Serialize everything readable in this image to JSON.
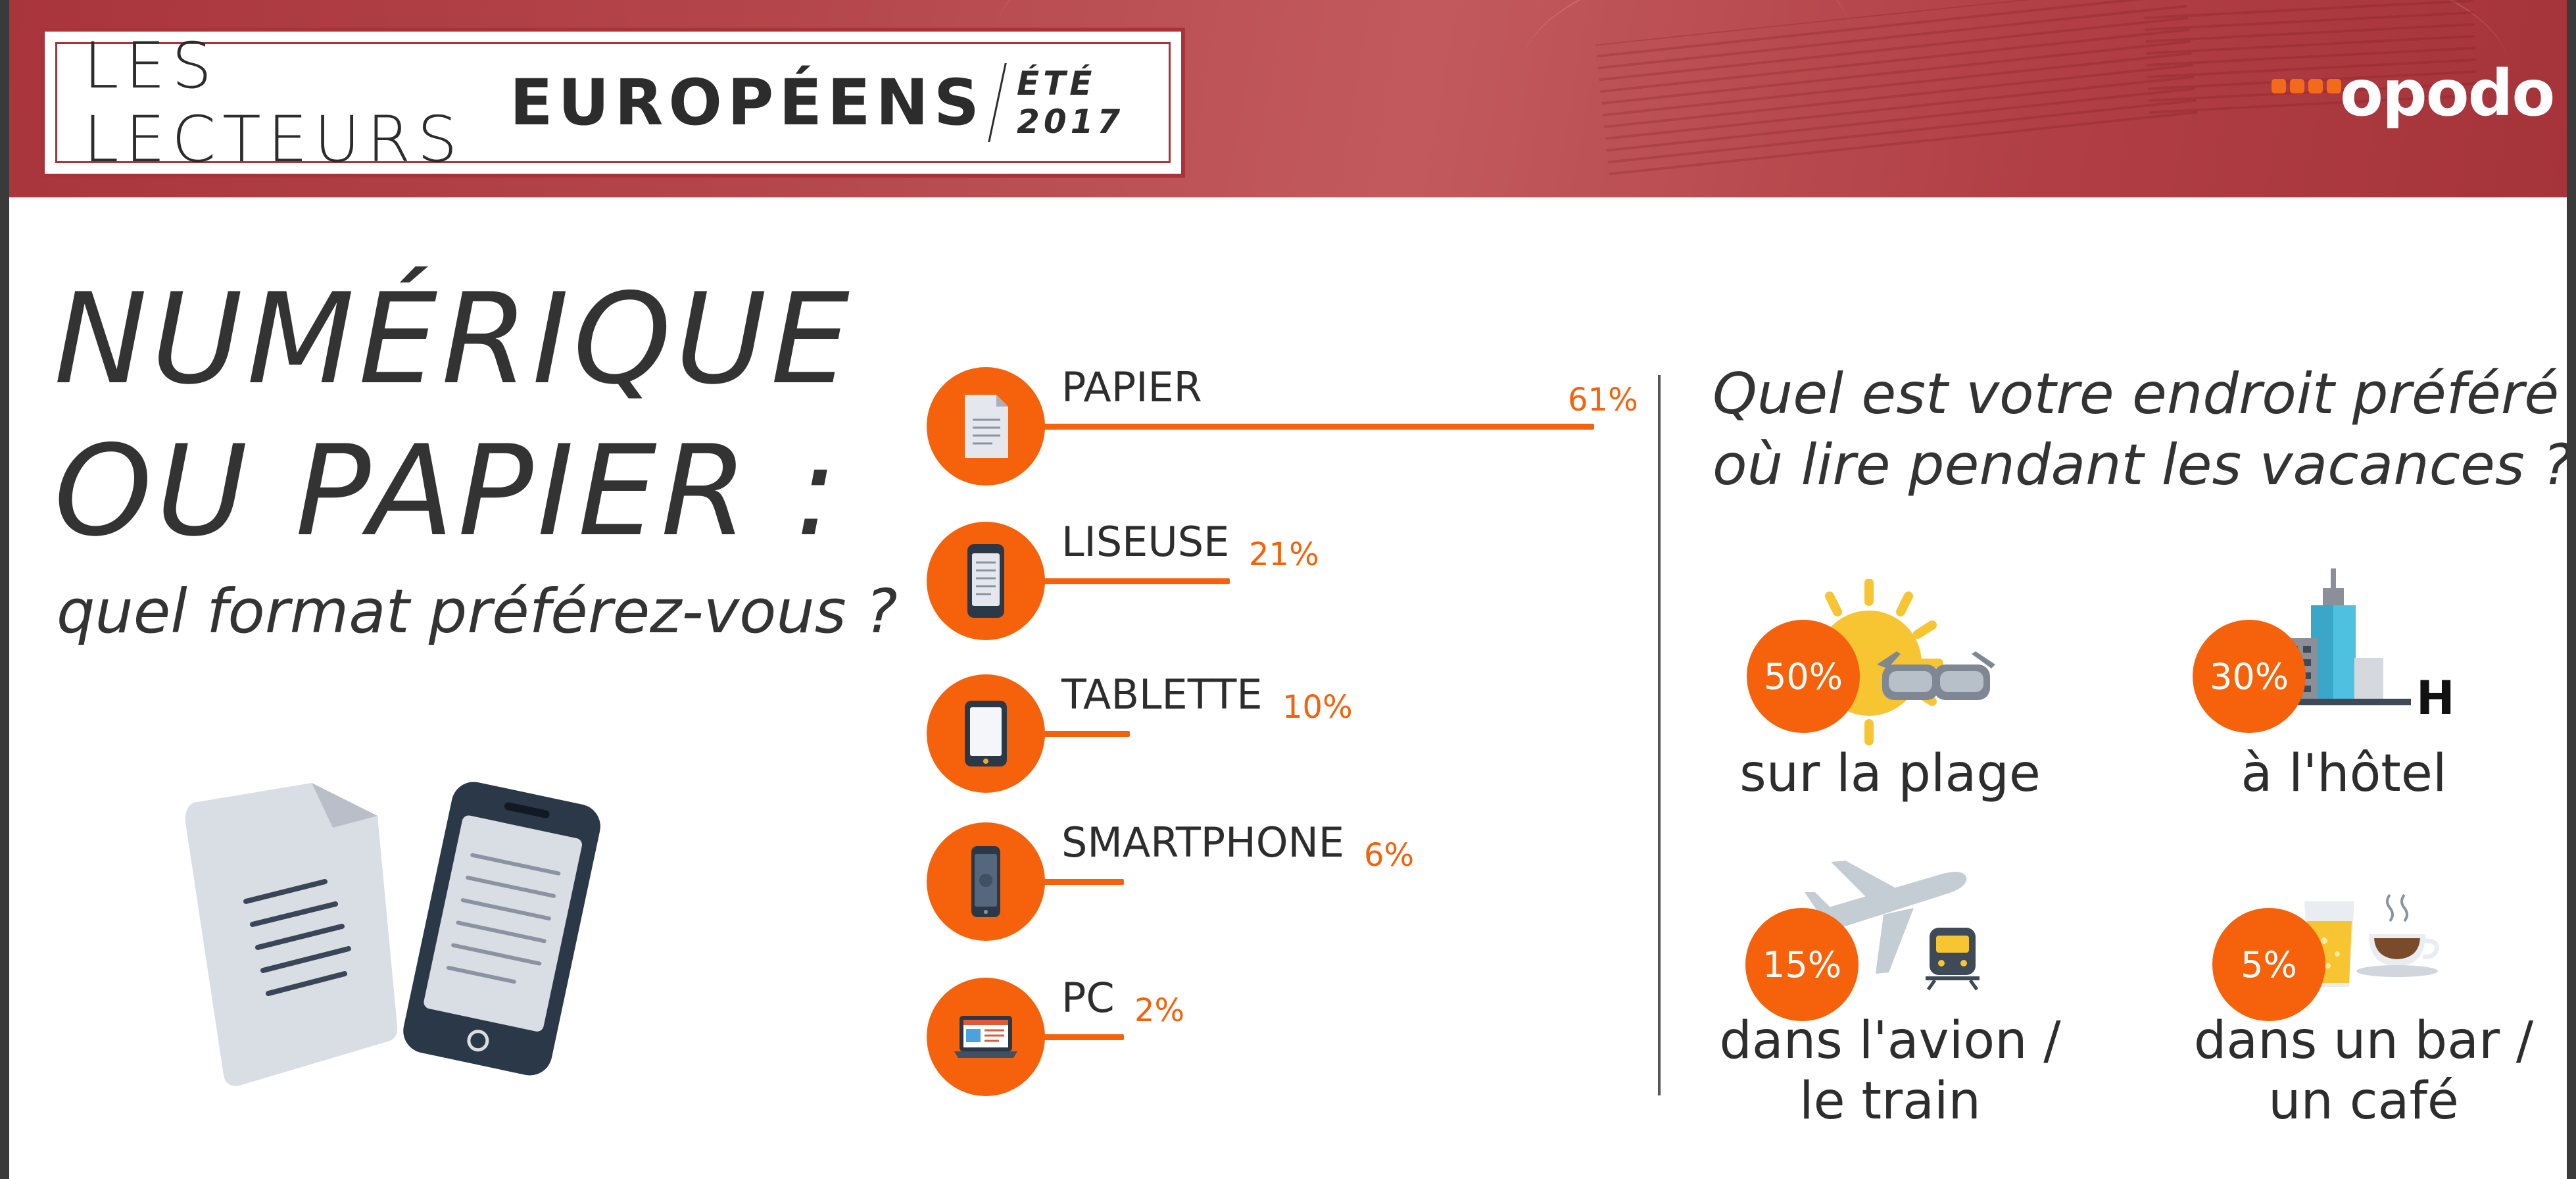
{
  "header": {
    "title_light": "LES LECTEURS",
    "title_bold": "EUROPÉENS",
    "title_date": "ÉTÉ 2017",
    "logo": "opodo"
  },
  "headline": {
    "line1": "NUMÉRIQUE",
    "line2": "OU PAPIER :",
    "subtitle": "quel format préférez-vous ?"
  },
  "chart_data": {
    "type": "bar",
    "categories": [
      "PAPIER",
      "LISEUSE",
      "TABLETTE",
      "SMARTPHONE",
      "PC"
    ],
    "values": [
      61,
      21,
      10,
      6,
      2
    ],
    "value_labels": [
      "61%",
      "21%",
      "10%",
      "6%",
      "2%"
    ],
    "icons": [
      "document-icon",
      "e-reader-icon",
      "tablet-icon",
      "smartphone-icon",
      "laptop-icon"
    ],
    "color": "#f5620b"
  },
  "places": {
    "question_line1": "Quel est votre endroit préféré",
    "question_line2": "où lire pendant les vacances ?",
    "items": [
      {
        "value": "50%",
        "label_line1": "sur la plage",
        "label_line2": "",
        "icon": "beach-sun-glasses-icon"
      },
      {
        "value": "30%",
        "label_line1": "à l'hôtel",
        "label_line2": "",
        "icon": "hotel-building-icon",
        "icon_text": "H"
      },
      {
        "value": "15%",
        "label_line1": "dans l'avion /",
        "label_line2": "le train",
        "icon": "plane-train-icon"
      },
      {
        "value": "5%",
        "label_line1": "dans un bar /",
        "label_line2": "un café",
        "icon": "drink-coffee-icon"
      }
    ]
  },
  "colors": {
    "accent": "#f5620b",
    "header_red": "#a8343a",
    "text": "#2d2d2d"
  }
}
